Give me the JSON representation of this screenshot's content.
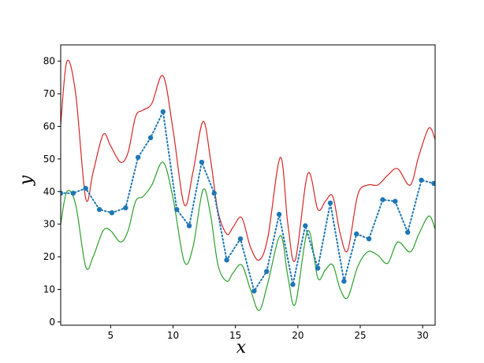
{
  "chart_data": {
    "type": "line",
    "title": "",
    "xlabel": "x",
    "ylabel": "y",
    "xlim": [
      1,
      31
    ],
    "ylim": [
      -1,
      85
    ],
    "x_ticks": [
      5,
      10,
      15,
      20,
      25,
      30
    ],
    "y_ticks": [
      0,
      10,
      20,
      30,
      40,
      50,
      60,
      70,
      80
    ],
    "grid": false,
    "legend": "none",
    "series": [
      {
        "style": "solid-line",
        "color": "#d62728",
        "x": [
          1.0,
          1.5,
          2.2,
          3.0,
          3.6,
          4.4,
          5.0,
          5.8,
          6.4,
          7.0,
          7.6,
          8.3,
          9.2,
          10.0,
          10.9,
          11.6,
          12.4,
          13.0,
          13.6,
          14.3,
          14.8,
          15.5,
          16.2,
          16.9,
          17.6,
          18.6,
          19.2,
          19.8,
          20.8,
          21.6,
          22.2,
          22.8,
          23.4,
          24.0,
          24.8,
          25.6,
          26.4,
          27.2,
          28.0,
          29.0,
          29.7,
          30.5,
          31.0
        ],
        "y": [
          60.5,
          80.0,
          70.0,
          38.0,
          46.0,
          57.5,
          54.0,
          49.0,
          52.0,
          63.0,
          65.0,
          67.0,
          75.5,
          59.0,
          36.0,
          46.0,
          61.5,
          50.0,
          34.0,
          27.0,
          29.0,
          32.0,
          23.0,
          19.0,
          26.0,
          50.5,
          30.0,
          19.0,
          45.5,
          34.5,
          37.0,
          38.5,
          27.0,
          22.0,
          39.0,
          42.0,
          42.0,
          45.0,
          47.0,
          42.0,
          51.0,
          59.5,
          56.0
        ]
      },
      {
        "style": "solid-line",
        "color": "#2ca02c",
        "x": [
          1.0,
          1.5,
          2.2,
          3.0,
          3.6,
          4.4,
          5.0,
          5.8,
          6.4,
          7.0,
          7.6,
          8.3,
          9.2,
          10.0,
          10.9,
          11.6,
          12.4,
          13.0,
          13.6,
          14.3,
          14.8,
          15.5,
          16.2,
          16.9,
          17.6,
          18.6,
          19.2,
          19.8,
          20.8,
          21.6,
          22.2,
          22.8,
          23.4,
          24.0,
          24.8,
          25.6,
          26.4,
          27.2,
          28.0,
          29.0,
          29.7,
          30.5,
          31.0
        ],
        "y": [
          30.0,
          40.0,
          36.0,
          17.0,
          20.0,
          28.0,
          28.0,
          24.5,
          28.0,
          37.0,
          38.5,
          42.0,
          49.0,
          38.0,
          18.5,
          23.0,
          40.5,
          33.0,
          17.5,
          12.5,
          15.0,
          17.5,
          10.0,
          3.5,
          12.0,
          26.5,
          14.0,
          5.5,
          28.0,
          13.5,
          16.0,
          17.5,
          10.0,
          7.5,
          17.0,
          21.5,
          20.5,
          18.0,
          24.5,
          21.5,
          27.0,
          32.5,
          28.5
        ]
      },
      {
        "style": "dotted-markers",
        "color": "#1f77b4",
        "x": [
          1.0,
          2.0,
          3.0,
          4.1,
          5.1,
          6.2,
          7.2,
          8.2,
          9.2,
          10.3,
          11.3,
          12.3,
          13.3,
          14.3,
          15.4,
          16.5,
          17.5,
          18.5,
          19.6,
          20.6,
          21.6,
          22.6,
          23.7,
          24.7,
          25.7,
          26.8,
          27.8,
          28.8,
          29.9,
          30.9
        ],
        "y": [
          39.5,
          39.5,
          41.0,
          34.5,
          33.5,
          35.0,
          50.5,
          56.5,
          64.5,
          34.5,
          29.5,
          49.0,
          39.5,
          19.0,
          25.5,
          9.5,
          15.5,
          33.0,
          11.5,
          29.5,
          16.5,
          36.5,
          12.5,
          27.0,
          25.5,
          37.5,
          37.0,
          27.5,
          43.5,
          42.5
        ]
      }
    ]
  }
}
